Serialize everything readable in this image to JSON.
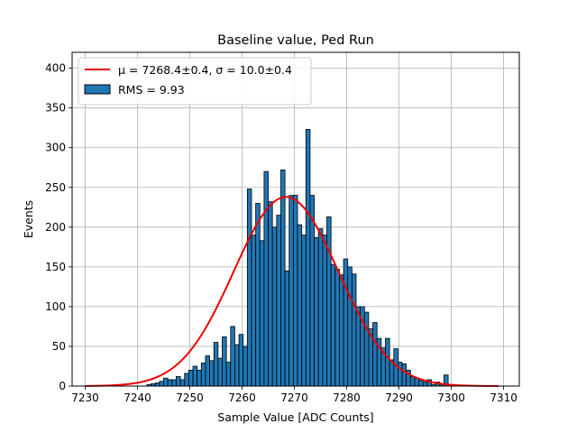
{
  "chart_data": {
    "type": "histogram",
    "title": "Baseline value, Ped Run",
    "xlabel": "Sample Value [ADC Counts]",
    "ylabel": "Events",
    "xlim": [
      7227.5,
      7313.0
    ],
    "ylim": [
      0,
      420
    ],
    "xticks": [
      7230,
      7240,
      7250,
      7260,
      7270,
      7280,
      7290,
      7300,
      7310
    ],
    "yticks": [
      0,
      50,
      100,
      150,
      200,
      250,
      300,
      350,
      400
    ],
    "grid": true,
    "legend_position": "top-left",
    "bin_width": 0.8,
    "bin_start": 7230.6,
    "values": [
      0,
      0,
      0,
      0,
      0,
      0,
      0,
      0,
      0,
      0,
      0,
      0,
      0,
      0,
      2,
      3,
      4,
      6,
      10,
      8,
      8,
      12,
      8,
      16,
      20,
      25,
      20,
      29,
      38,
      32,
      55,
      35,
      62,
      30,
      75,
      52,
      65,
      50,
      248,
      190,
      230,
      183,
      270,
      232,
      200,
      215,
      272,
      145,
      240,
      240,
      203,
      190,
      323,
      240,
      187,
      198,
      190,
      213,
      153,
      147,
      140,
      160,
      150,
      141,
      100,
      100,
      93,
      72,
      80,
      60,
      48,
      60,
      33,
      47,
      30,
      28,
      20,
      12,
      10,
      7,
      5,
      8,
      2,
      5,
      2,
      14,
      0
    ],
    "series": [
      {
        "kind": "bar",
        "legend_label": "RMS = 9.93",
        "color": "#1f77b4",
        "edgecolor": "#000000"
      },
      {
        "kind": "line",
        "legend_label": "μ = 7268.4±0.4, σ = 10.0±0.4",
        "color": "#ee0000",
        "fit": {
          "model": "gaussian",
          "mu": 7268.4,
          "sigma": 10.0,
          "amplitude": 238
        },
        "x_range": [
          7230,
          7309
        ]
      }
    ]
  }
}
